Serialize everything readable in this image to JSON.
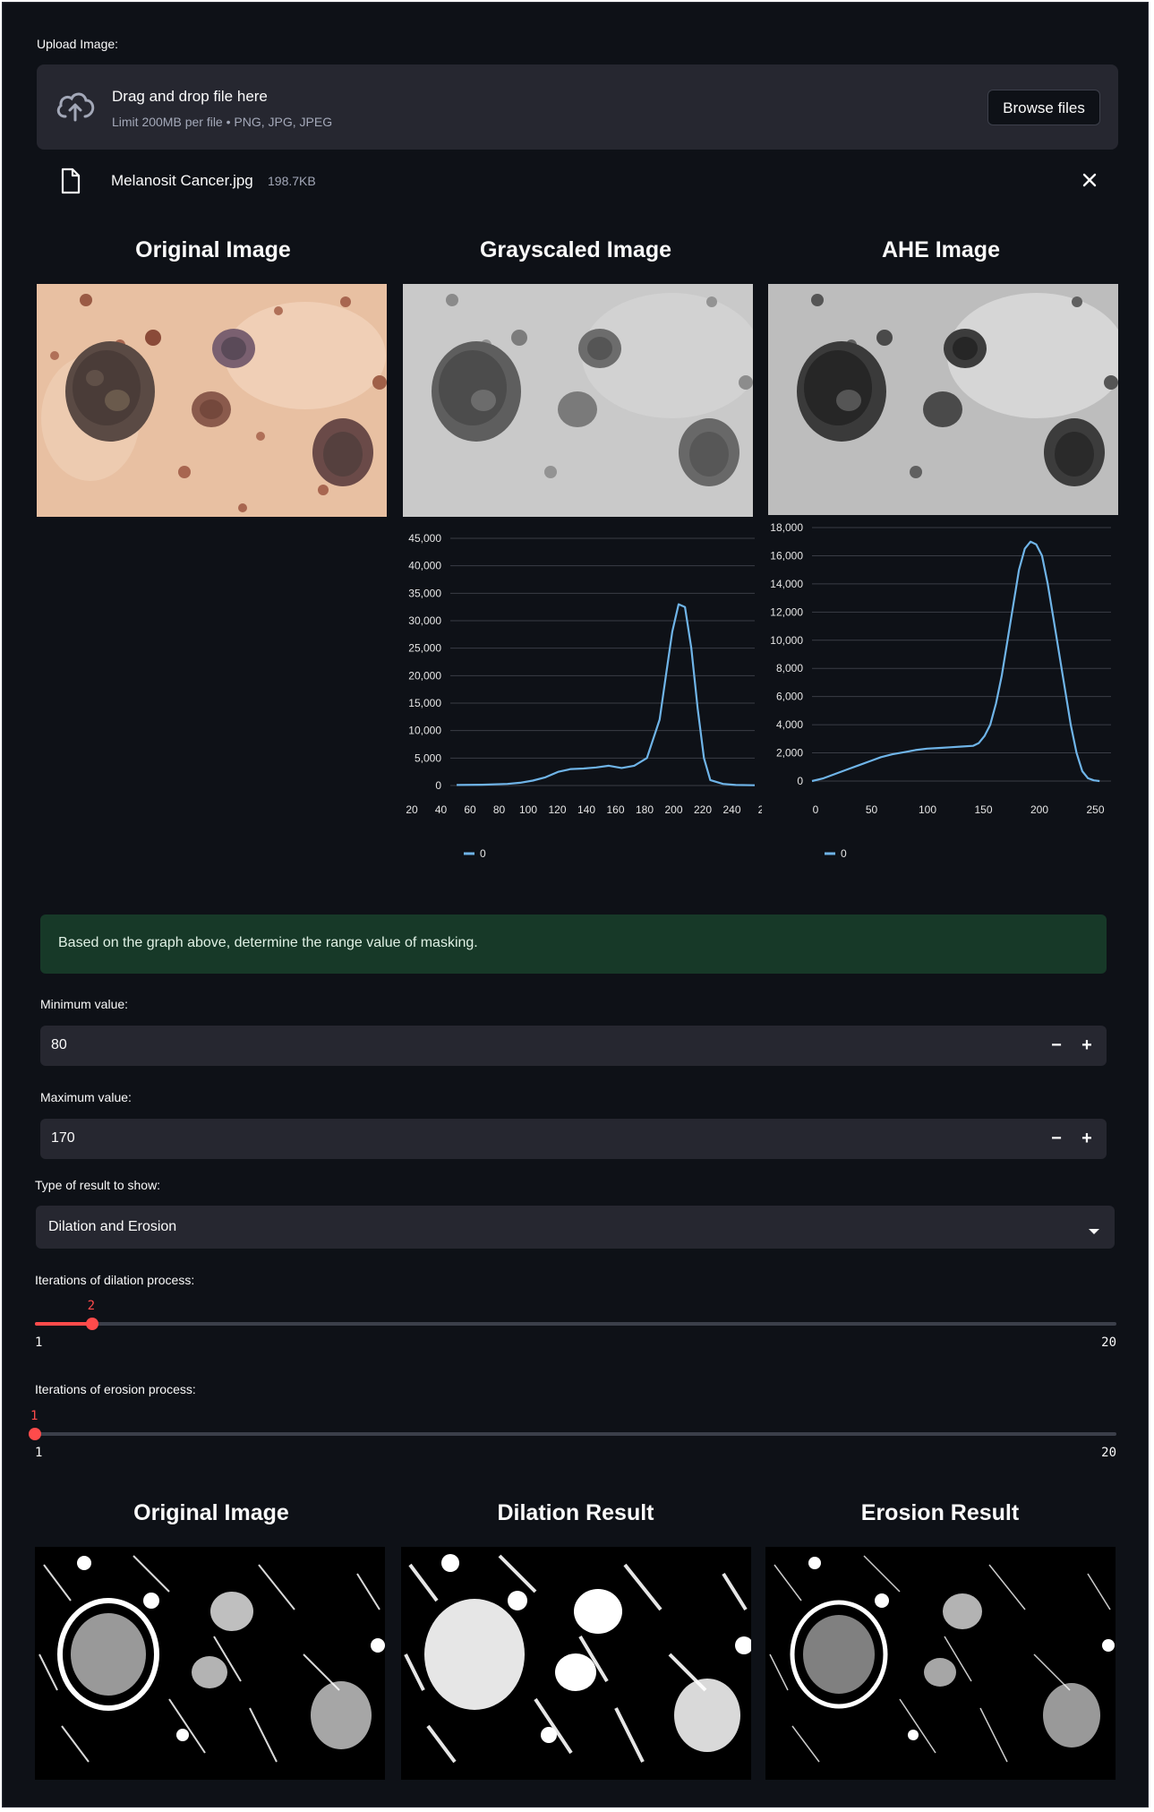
{
  "upload": {
    "label": "Upload Image:",
    "dropzone_title": "Drag and drop file here",
    "dropzone_limit": "Limit 200MB per file • PNG, JPG, JPEG",
    "browse_label": "Browse files",
    "file_name": "Melanosit Cancer.jpg",
    "file_size": "198.7KB"
  },
  "row1": {
    "titles": [
      "Original Image",
      "Grayscaled Image",
      "AHE Image"
    ]
  },
  "info_message": "Based on the graph above, determine the range value of masking.",
  "min_field": {
    "label": "Minimum value:",
    "value": "80",
    "minus": "−",
    "plus": "+"
  },
  "max_field": {
    "label": "Maximum value:",
    "value": "170",
    "minus": "−",
    "plus": "+"
  },
  "result_type": {
    "label": "Type of result to show:",
    "selected": "Dilation and Erosion"
  },
  "dilation_slider": {
    "label": "Iterations of dilation process:",
    "value": 2,
    "value_label": "2",
    "min": 1,
    "max": 20,
    "min_label": "1",
    "max_label": "20"
  },
  "erosion_slider": {
    "label": "Iterations of erosion process:",
    "value": 1,
    "value_label": "1",
    "min": 1,
    "max": 20,
    "min_label": "1",
    "max_label": "20"
  },
  "row2": {
    "titles": [
      "Original Image",
      "Dilation Result",
      "Erosion Result"
    ]
  },
  "colors": {
    "accent": "#ff4b4b",
    "line": "#6fb4e8",
    "info_bg": "#173928"
  },
  "chart_data": [
    {
      "type": "line",
      "x": [
        20,
        40,
        60,
        70,
        80,
        90,
        100,
        110,
        120,
        130,
        140,
        150,
        160,
        170,
        180,
        185,
        190,
        195,
        200,
        205,
        210,
        215,
        220,
        230,
        240,
        255
      ],
      "series": [
        {
          "name": "0",
          "values": [
            100,
            150,
            300,
            500,
            900,
            1500,
            2500,
            3000,
            3100,
            3300,
            3600,
            3200,
            3600,
            5000,
            12000,
            20000,
            28000,
            33000,
            32500,
            25000,
            14000,
            5000,
            1000,
            300,
            100,
            50
          ]
        }
      ],
      "ylim": [
        0,
        45000
      ],
      "xlim": [
        15,
        255
      ],
      "xticks": [
        "20",
        "40",
        "60",
        "80",
        "100",
        "120",
        "140",
        "160",
        "180",
        "200",
        "220",
        "240",
        "2"
      ],
      "yticks": [
        "0",
        "5,000",
        "10,000",
        "15,000",
        "20,000",
        "25,000",
        "30,000",
        "35,000",
        "40,000",
        "45,000"
      ],
      "legend_label": "0"
    },
    {
      "type": "line",
      "x": [
        0,
        10,
        20,
        30,
        40,
        50,
        60,
        70,
        80,
        90,
        100,
        110,
        120,
        130,
        140,
        145,
        150,
        155,
        160,
        165,
        170,
        175,
        180,
        185,
        190,
        195,
        200,
        205,
        210,
        215,
        220,
        225,
        230,
        235,
        240,
        245,
        250
      ],
      "series": [
        {
          "name": "0",
          "values": [
            0,
            200,
            500,
            800,
            1100,
            1400,
            1700,
            1900,
            2050,
            2200,
            2300,
            2350,
            2400,
            2450,
            2500,
            2700,
            3200,
            4000,
            5500,
            7500,
            10000,
            12500,
            15000,
            16500,
            17000,
            16800,
            16000,
            14000,
            11500,
            9000,
            6500,
            4000,
            2000,
            700,
            200,
            50,
            0
          ]
        }
      ],
      "ylim": [
        0,
        18000
      ],
      "xlim": [
        0,
        260
      ],
      "xticks": [
        "0",
        "50",
        "100",
        "150",
        "200",
        "250"
      ],
      "yticks": [
        "0",
        "2,000",
        "4,000",
        "6,000",
        "8,000",
        "10,000",
        "12,000",
        "14,000",
        "16,000",
        "18,000"
      ],
      "legend_label": "0"
    }
  ]
}
